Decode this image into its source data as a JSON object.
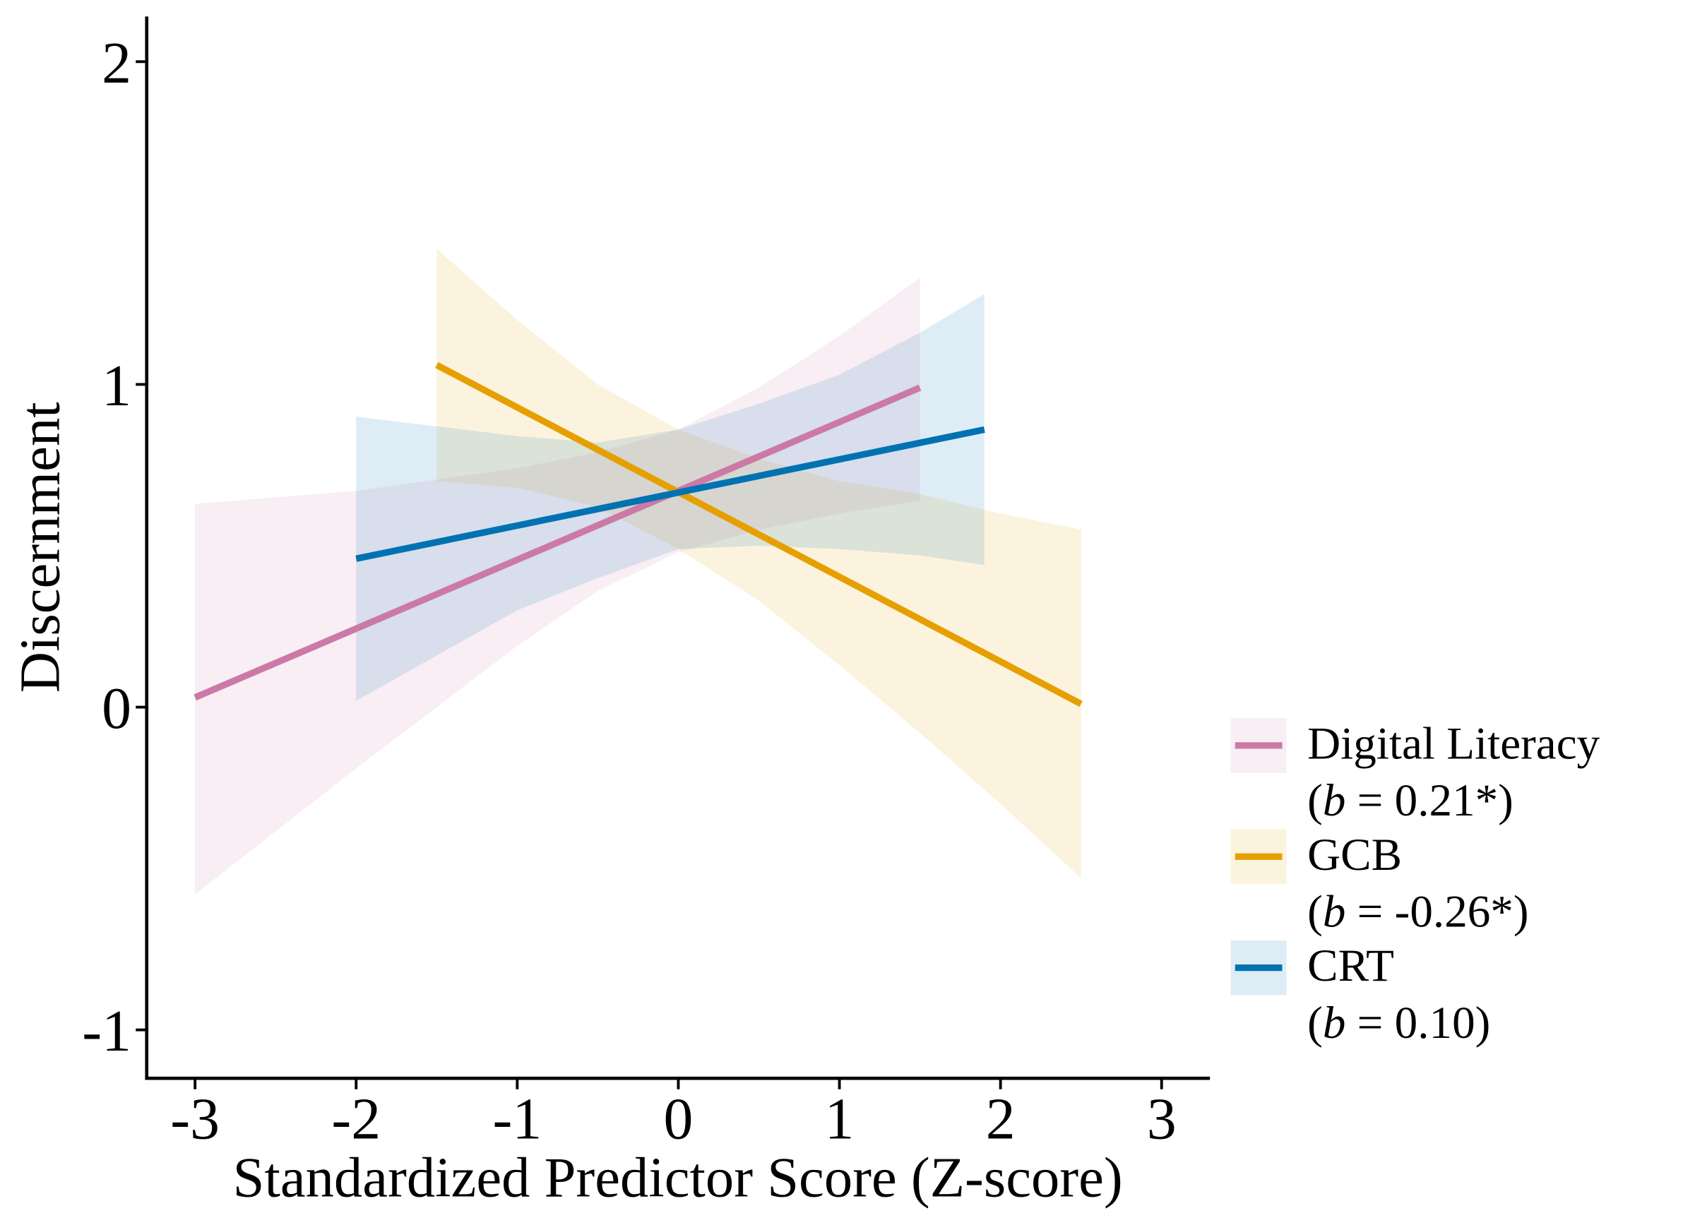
{
  "chart_data": {
    "type": "line",
    "title": "",
    "xlabel": "Standardized Predictor Score (Z-score)",
    "ylabel": "Discernment",
    "xlim": [
      -3.3,
      3.3
    ],
    "ylim": [
      -1.15,
      2.14
    ],
    "xticks": [
      -3,
      -2,
      -1,
      0,
      1,
      2,
      3
    ],
    "xtick_labels": [
      "-3",
      "-2",
      "-1",
      "0",
      "1",
      "2",
      "3"
    ],
    "yticks": [
      -1,
      0,
      1,
      2
    ],
    "ytick_labels": [
      "-1",
      "0",
      "1",
      "2"
    ],
    "grid": false,
    "legend_placement": "right",
    "series": [
      {
        "name": "Digital Literacy",
        "stat_prefix": "(",
        "stat_var": "b",
        "stat_rest": " = 0.21*)",
        "color": "#CC79A7",
        "line": [
          [
            -3,
            0.03
          ],
          [
            1.5,
            0.99
          ]
        ],
        "ci_x": [
          -3,
          -2,
          -1,
          -0.5,
          0,
          0.5,
          1,
          1.5
        ],
        "ci_upper": [
          0.63,
          0.67,
          0.74,
          0.79,
          0.86,
          0.99,
          1.15,
          1.33
        ],
        "ci_lower": [
          -0.58,
          -0.19,
          0.19,
          0.36,
          0.48,
          0.55,
          0.6,
          0.64
        ]
      },
      {
        "name": "GCB",
        "stat_prefix": "(",
        "stat_var": "b",
        "stat_rest": " = -0.26*)",
        "color": "#E69F00",
        "line": [
          [
            -1.5,
            1.06
          ],
          [
            2.5,
            0.01
          ]
        ],
        "ci_x": [
          -1.5,
          -1,
          -0.5,
          0,
          0.5,
          1,
          1.5,
          2,
          2.5
        ],
        "ci_upper": [
          1.42,
          1.2,
          1.0,
          0.86,
          0.77,
          0.7,
          0.66,
          0.6,
          0.55
        ],
        "ci_lower": [
          0.7,
          0.68,
          0.62,
          0.49,
          0.33,
          0.13,
          -0.08,
          -0.3,
          -0.53
        ]
      },
      {
        "name": "CRT",
        "stat_prefix": "(",
        "stat_var": "b",
        "stat_rest": " = 0.10)",
        "color": "#0072B2",
        "line": [
          [
            -2,
            0.46
          ],
          [
            1.9,
            0.86
          ]
        ],
        "ci_x": [
          -2,
          -1,
          -0.5,
          0,
          0.5,
          1,
          1.5,
          1.9
        ],
        "ci_upper": [
          0.9,
          0.84,
          0.82,
          0.86,
          0.94,
          1.03,
          1.16,
          1.28
        ],
        "ci_lower": [
          0.02,
          0.3,
          0.4,
          0.49,
          0.5,
          0.49,
          0.47,
          0.44
        ]
      }
    ]
  }
}
